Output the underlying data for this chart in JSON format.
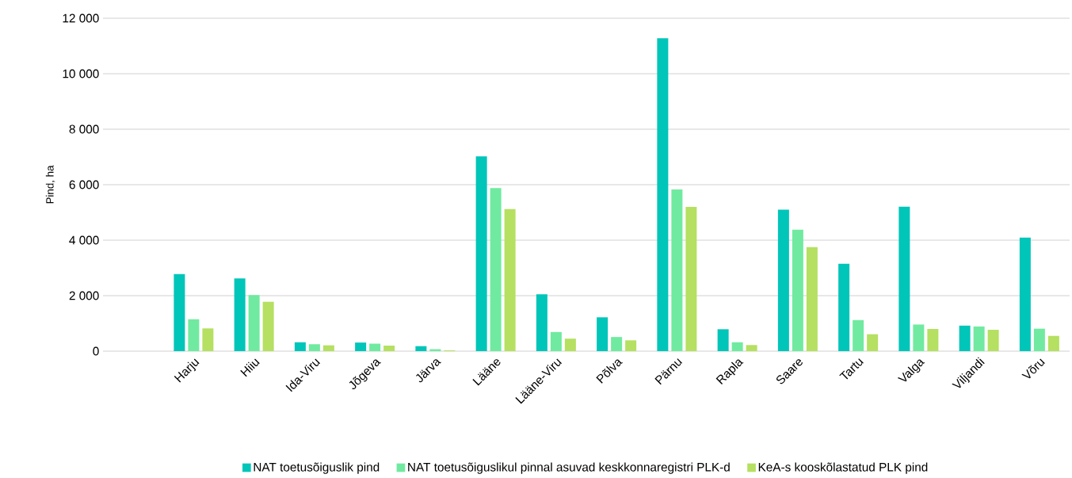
{
  "chart_data": {
    "type": "bar",
    "ylabel": "Pind, ha",
    "categories": [
      null,
      "Harju",
      "Hiiu",
      "Ida-Viru",
      "Jõgeva",
      "Järva",
      "Lääne",
      "Lääne-Viru",
      "Põlva",
      "Pärnu",
      "Rapla",
      "Saare",
      "Tartu",
      "Valga",
      "Viljandi",
      "Võru"
    ],
    "series": [
      {
        "name": "NAT toetusõiguslik pind",
        "color": "#00c5b9",
        "values": [
          null,
          2780,
          2620,
          320,
          310,
          180,
          7020,
          2050,
          1220,
          11280,
          790,
          5100,
          3150,
          5210,
          920,
          4090
        ]
      },
      {
        "name": "NAT toetusõiguslikul pinnal asuvad keskkonnaregistri PLK-d",
        "color": "#70eaa0",
        "values": [
          null,
          1150,
          2020,
          250,
          270,
          70,
          5880,
          690,
          510,
          5830,
          320,
          4380,
          1120,
          960,
          890,
          810
        ]
      },
      {
        "name": "KeA-s kooskõlastatud PLK pind",
        "color": "#b5e061",
        "values": [
          null,
          820,
          1780,
          210,
          200,
          30,
          5120,
          450,
          390,
          5200,
          220,
          3750,
          610,
          800,
          770,
          550
        ]
      }
    ],
    "ylim": [
      0,
      12000
    ],
    "yticks": [
      0,
      {
        "value": 2000,
        "label": "2 000"
      },
      {
        "value": 4000,
        "label": "4 000"
      },
      {
        "value": 6000,
        "label": "6 000"
      },
      {
        "value": 8000,
        "label": "8 000"
      },
      {
        "value": 10000,
        "label": "10 000"
      },
      {
        "value": 12000,
        "label": "12 000"
      }
    ],
    "grid": "y",
    "legend": "bottom"
  }
}
